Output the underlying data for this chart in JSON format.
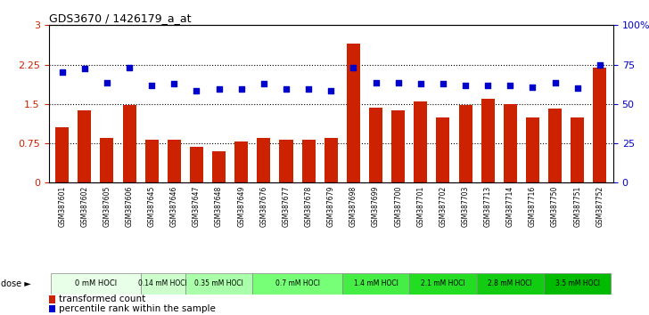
{
  "title": "GDS3670 / 1426179_a_at",
  "samples": [
    "GSM387601",
    "GSM387602",
    "GSM387605",
    "GSM387606",
    "GSM387645",
    "GSM387646",
    "GSM387647",
    "GSM387648",
    "GSM387649",
    "GSM387676",
    "GSM387677",
    "GSM387678",
    "GSM387679",
    "GSM387698",
    "GSM387699",
    "GSM387700",
    "GSM387701",
    "GSM387702",
    "GSM387703",
    "GSM387713",
    "GSM387714",
    "GSM387716",
    "GSM387750",
    "GSM387751",
    "GSM387752"
  ],
  "bar_values": [
    1.05,
    1.38,
    0.85,
    1.48,
    0.82,
    0.82,
    0.68,
    0.6,
    0.78,
    0.85,
    0.82,
    0.82,
    0.85,
    2.65,
    1.43,
    1.38,
    1.55,
    1.25,
    1.48,
    1.6,
    1.5,
    1.25,
    1.42,
    1.25,
    2.2
  ],
  "dot_values": [
    2.1,
    2.18,
    1.9,
    2.2,
    1.85,
    1.88,
    1.75,
    1.78,
    1.78,
    1.88,
    1.78,
    1.78,
    1.75,
    2.2,
    1.9,
    1.9,
    1.88,
    1.88,
    1.85,
    1.85,
    1.85,
    1.82,
    1.9,
    1.8,
    2.25
  ],
  "dose_groups": [
    {
      "label": "0 mM HOCl",
      "start": 0,
      "end": 4,
      "color": "#e8ffe8"
    },
    {
      "label": "0.14 mM HOCl",
      "start": 4,
      "end": 6,
      "color": "#ccffcc"
    },
    {
      "label": "0.35 mM HOCl",
      "start": 6,
      "end": 9,
      "color": "#aaffaa"
    },
    {
      "label": "0.7 mM HOCl",
      "start": 9,
      "end": 13,
      "color": "#77ff77"
    },
    {
      "label": "1.4 mM HOCl",
      "start": 13,
      "end": 16,
      "color": "#44ee44"
    },
    {
      "label": "2.1 mM HOCl",
      "start": 16,
      "end": 19,
      "color": "#22dd22"
    },
    {
      "label": "2.8 mM HOCl",
      "start": 19,
      "end": 22,
      "color": "#11cc11"
    },
    {
      "label": "3.5 mM HOCl",
      "start": 22,
      "end": 25,
      "color": "#00bb00"
    }
  ],
  "bar_color": "#cc2200",
  "dot_color": "#0000cc",
  "ylim_left": [
    0,
    3
  ],
  "ylim_right": [
    0,
    100
  ],
  "yticks_left": [
    0,
    0.75,
    1.5,
    2.25,
    3
  ],
  "yticks_right": [
    0,
    25,
    50,
    75,
    100
  ],
  "ytick_labels_right": [
    "0",
    "25",
    "50",
    "75",
    "100%"
  ],
  "hline_values": [
    0.75,
    1.5,
    2.25
  ],
  "dose_label": "dose ►"
}
